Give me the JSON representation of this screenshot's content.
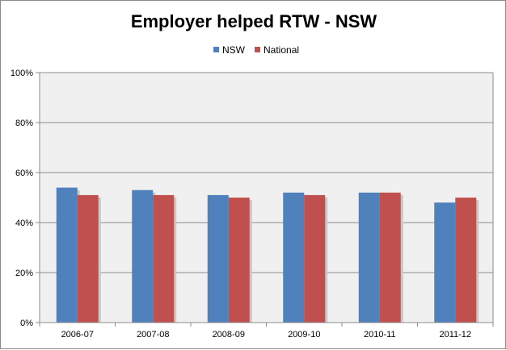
{
  "chart_data": {
    "type": "bar",
    "title": "Employer helped RTW - NSW",
    "categories": [
      "2006-07",
      "2007-08",
      "2008-09",
      "2009-10",
      "2010-11",
      "2011-12"
    ],
    "series": [
      {
        "name": "NSW",
        "values": [
          54,
          53,
          51,
          52,
          52,
          48
        ],
        "color": "#4f81bd"
      },
      {
        "name": "National",
        "values": [
          51,
          51,
          50,
          51,
          52,
          50
        ],
        "color": "#c0504d"
      }
    ],
    "yticks": [
      "0%",
      "20%",
      "40%",
      "60%",
      "80%",
      "100%"
    ],
    "ylim": [
      0,
      100
    ],
    "grid": true,
    "legend": "top-center",
    "plot_background": "#f0f0f0"
  }
}
